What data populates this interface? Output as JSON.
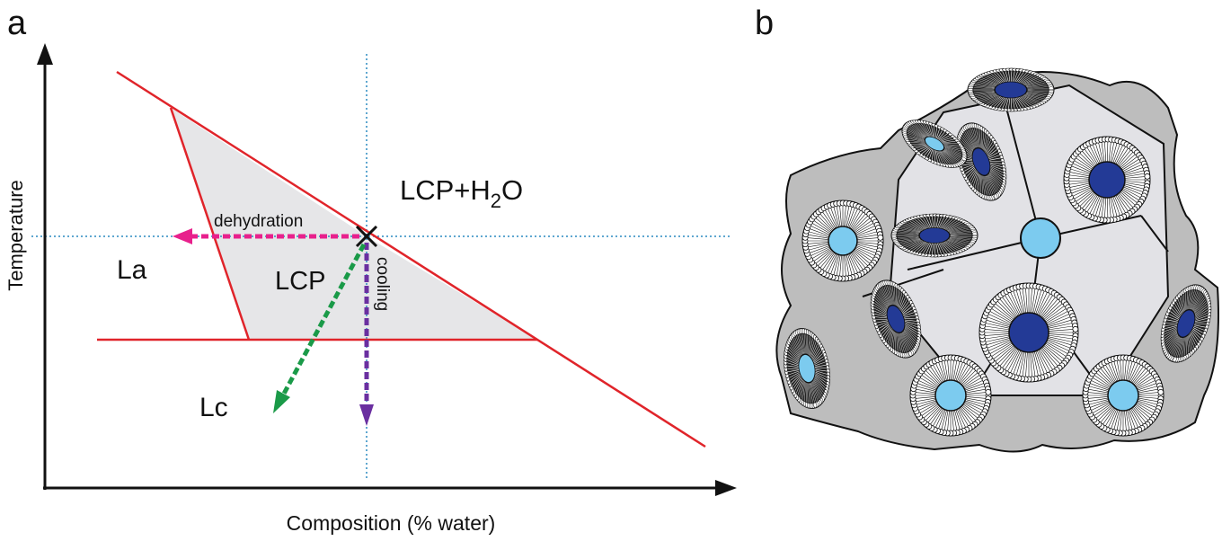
{
  "panel_a": {
    "label": "a",
    "y_axis_label": "Temperature",
    "x_axis_label": "Composition (% water)",
    "region_upper": {
      "main": "LCP+H",
      "sub": "2",
      "tail": "O"
    },
    "region_left": "La",
    "region_center": "LCP",
    "region_lower": "Lc",
    "arrow_dehydration": "dehydration",
    "arrow_cooling": "cooling"
  },
  "panel_b": {
    "label": "b"
  }
}
